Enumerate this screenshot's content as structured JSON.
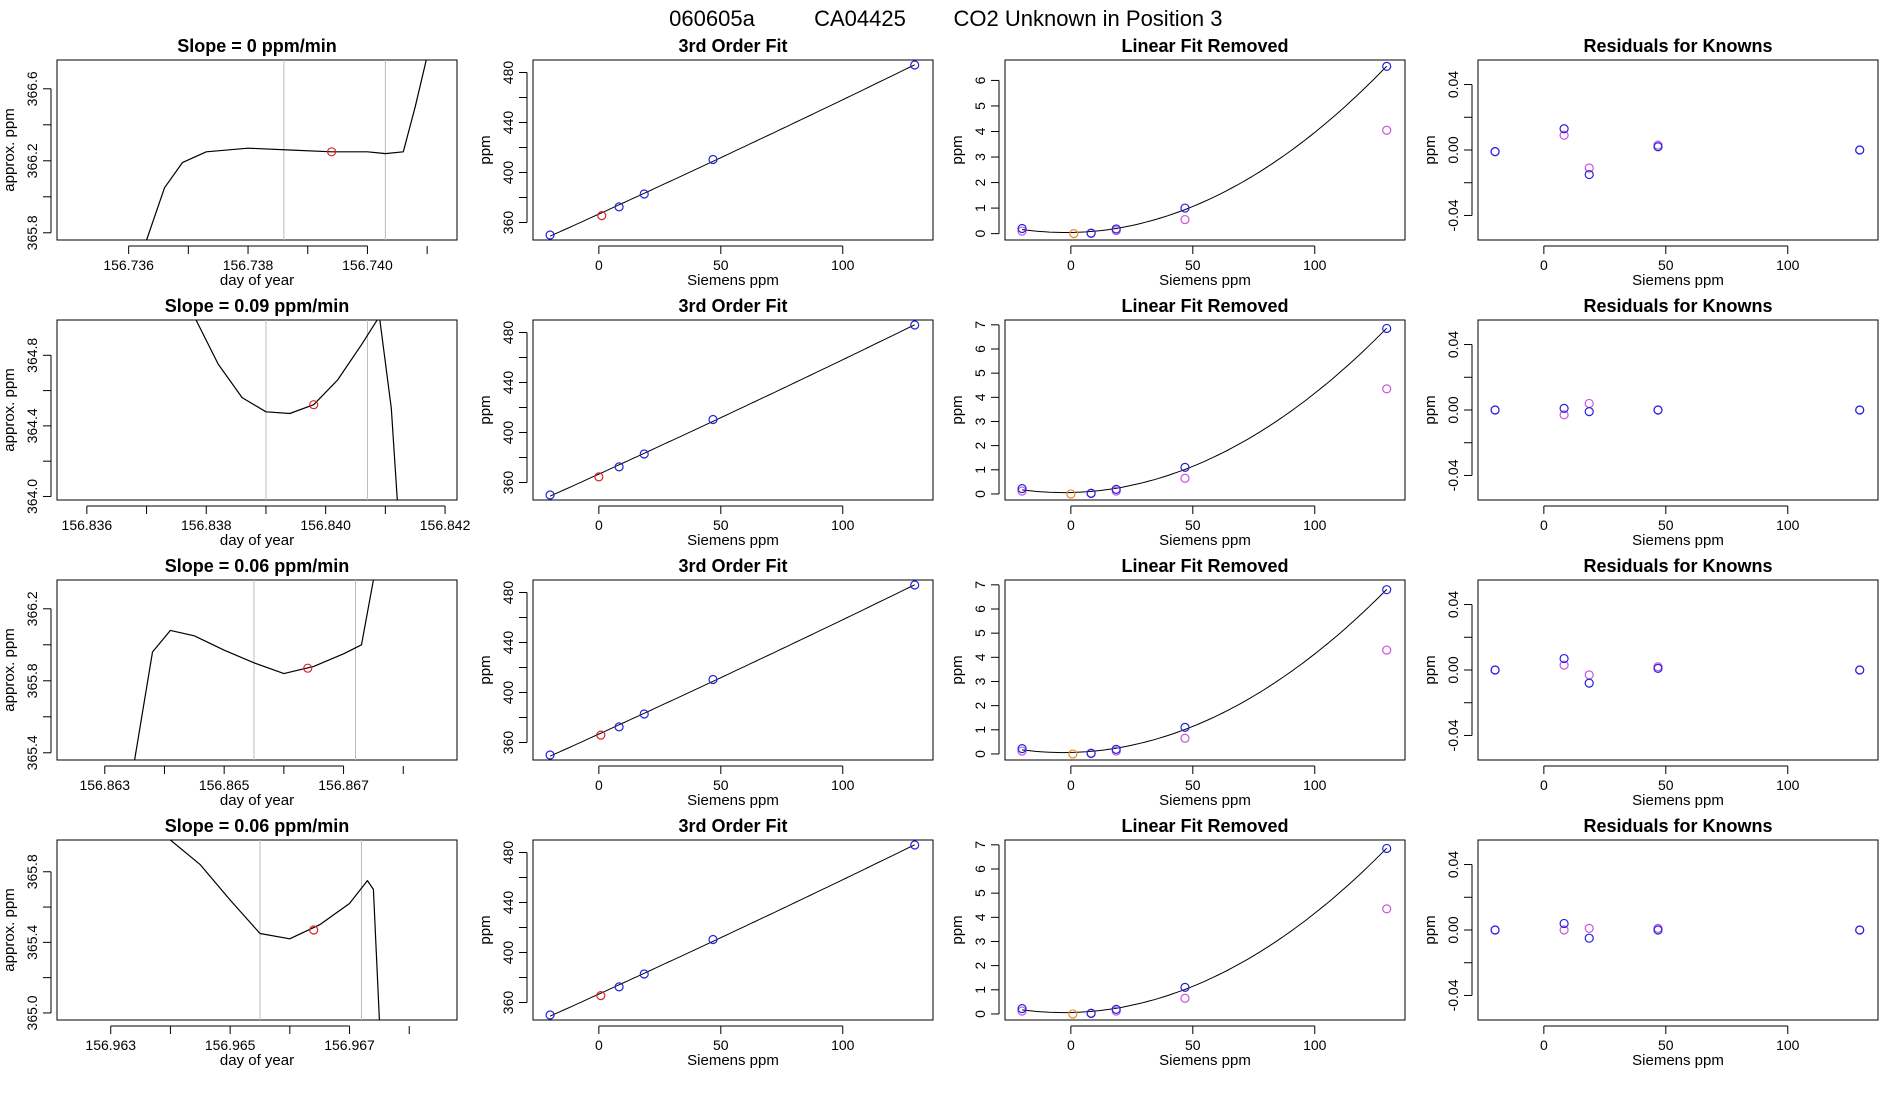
{
  "figure": {
    "title_parts": [
      "060605a",
      "CA04425",
      "CO2 Unknown in Position  3"
    ]
  },
  "colors": {
    "known": "#2222dd",
    "fit_point": "#cc55dd",
    "unknown": "#dd2222",
    "unknown_orange": "#ee8822",
    "vline": "#bbbbbb",
    "line": "#000000"
  },
  "chart_data": [
    {
      "type": "line",
      "row": 0,
      "panel": "trace",
      "title": "Slope =  0  ppm/min",
      "xlabel": "day of year",
      "ylabel": "approx. ppm",
      "xlim": [
        156.7348,
        156.7415
      ],
      "ylim": [
        365.76,
        366.76
      ],
      "xticks": [
        156.736,
        156.738,
        156.74
      ],
      "xtick_labels": [
        "156.736",
        "156.738",
        "156.740"
      ],
      "xticks_minor": [
        156.737,
        156.739,
        156.741
      ],
      "yticks": [
        365.8,
        366.2,
        366.6
      ],
      "ytick_labels": [
        "365.8",
        "366.2",
        "366.6"
      ],
      "yticks_minor": [
        366.0,
        366.4
      ],
      "x": [
        156.7363,
        156.7366,
        156.7369,
        156.7373,
        156.738,
        156.7387,
        156.7394,
        156.74,
        156.7403,
        156.7406,
        156.7408,
        156.741
      ],
      "y": [
        365.76,
        366.05,
        366.19,
        366.25,
        366.27,
        366.26,
        366.25,
        366.25,
        366.24,
        366.25,
        366.5,
        366.78
      ],
      "vlines": [
        156.7386,
        156.7403
      ],
      "marker": {
        "x": 156.7394,
        "y": 366.25
      }
    },
    {
      "type": "scatter",
      "row": 0,
      "panel": "fit",
      "title": "3rd Order Fit",
      "xlabel": "Siemens ppm",
      "ylabel": "ppm",
      "xlim": [
        -27,
        137
      ],
      "ylim": [
        346,
        490
      ],
      "xticks": [
        0,
        50,
        100
      ],
      "xtick_labels": [
        "0",
        "50",
        "100"
      ],
      "yticks": [
        360,
        400,
        440,
        480
      ],
      "ytick_labels": [
        "360",
        "400",
        "440",
        "480"
      ],
      "yticks_minor": [
        380,
        420,
        460
      ],
      "x": [
        -20,
        8.3,
        18.6,
        46.8,
        129.5
      ],
      "y": [
        350,
        372.5,
        382.8,
        410.4,
        486
      ],
      "unknown": {
        "x": 1.2,
        "y": 365.5
      }
    },
    {
      "type": "scatter",
      "row": 0,
      "panel": "linear_removed",
      "title": "Linear Fit Removed",
      "xlabel": "Siemens ppm",
      "ylabel": "ppm",
      "xlim": [
        -27,
        137
      ],
      "ylim": [
        -0.25,
        6.8
      ],
      "xticks": [
        0,
        50,
        100
      ],
      "xtick_labels": [
        "0",
        "50",
        "100"
      ],
      "yticks": [
        0,
        1,
        2,
        3,
        4,
        5,
        6
      ],
      "ytick_labels": [
        "0",
        "1",
        "2",
        "3",
        "4",
        "5",
        "6"
      ],
      "x": [
        -20,
        8.3,
        18.6,
        46.8,
        129.5
      ],
      "y": [
        0.2,
        0.02,
        0.18,
        1.0,
        6.55
      ],
      "y2": [
        0.1,
        0.01,
        0.12,
        0.55,
        4.05
      ],
      "unknown": {
        "x": 1.2,
        "y": 0.0
      }
    },
    {
      "type": "scatter",
      "row": 0,
      "panel": "residuals",
      "title": "Residuals for Knowns",
      "xlabel": "Siemens ppm",
      "ylabel": "ppm",
      "xlim": [
        -27,
        137
      ],
      "ylim": [
        -0.055,
        0.055
      ],
      "xticks": [
        0,
        50,
        100
      ],
      "xtick_labels": [
        "0",
        "50",
        "100"
      ],
      "yticks": [
        -0.04,
        0.0,
        0.04
      ],
      "ytick_labels": [
        "-0.04",
        "0.00",
        "0.04"
      ],
      "yticks_minor": [
        -0.02,
        0.02
      ],
      "x": [
        -20,
        8.3,
        18.6,
        46.8,
        129.5
      ],
      "y": [
        -0.001,
        0.013,
        -0.015,
        0.002,
        0.0
      ],
      "y2": [
        -0.001,
        0.009,
        -0.011,
        0.003,
        0.0
      ]
    },
    {
      "type": "line",
      "row": 1,
      "panel": "trace",
      "title": "Slope =  0.09  ppm/min",
      "xlabel": "day of year",
      "ylabel": "approx. ppm",
      "xlim": [
        156.8355,
        156.8422
      ],
      "ylim": [
        363.98,
        365.0
      ],
      "xticks": [
        156.836,
        156.838,
        156.84,
        156.842
      ],
      "xtick_labels": [
        "156.836",
        "156.838",
        "156.840",
        "156.842"
      ],
      "xticks_minor": [
        156.837,
        156.839,
        156.841
      ],
      "yticks": [
        364.0,
        364.4,
        364.8
      ],
      "ytick_labels": [
        "364.0",
        "364.4",
        "364.8"
      ],
      "yticks_minor": [
        364.2,
        364.6
      ],
      "x": [
        156.8378,
        156.8382,
        156.8386,
        156.839,
        156.8394,
        156.8398,
        156.8402,
        156.8406,
        156.8409,
        156.8411,
        156.8412
      ],
      "y": [
        365.02,
        364.75,
        364.56,
        364.48,
        364.47,
        364.52,
        364.66,
        364.86,
        365.02,
        364.5,
        363.98
      ],
      "vlines": [
        156.839,
        156.8407
      ],
      "marker": {
        "x": 156.8398,
        "y": 364.52
      }
    },
    {
      "type": "scatter",
      "row": 1,
      "panel": "fit",
      "title": "3rd Order Fit",
      "xlabel": "Siemens ppm",
      "ylabel": "ppm",
      "xlim": [
        -27,
        137
      ],
      "ylim": [
        346,
        490
      ],
      "xticks": [
        0,
        50,
        100
      ],
      "xtick_labels": [
        "0",
        "50",
        "100"
      ],
      "yticks": [
        360,
        400,
        440,
        480
      ],
      "ytick_labels": [
        "360",
        "400",
        "440",
        "480"
      ],
      "yticks_minor": [
        380,
        420,
        460
      ],
      "x": [
        -20,
        8.3,
        18.6,
        46.8,
        129.5
      ],
      "y": [
        350,
        372.5,
        382.8,
        410.4,
        486
      ],
      "unknown": {
        "x": 0,
        "y": 364.5
      }
    },
    {
      "type": "scatter",
      "row": 1,
      "panel": "linear_removed",
      "title": "Linear Fit Removed",
      "xlabel": "Siemens ppm",
      "ylabel": "ppm",
      "xlim": [
        -27,
        137
      ],
      "ylim": [
        -0.25,
        7.2
      ],
      "xticks": [
        0,
        50,
        100
      ],
      "xtick_labels": [
        "0",
        "50",
        "100"
      ],
      "yticks": [
        0,
        1,
        2,
        3,
        4,
        5,
        6,
        7
      ],
      "ytick_labels": [
        "0",
        "1",
        "2",
        "3",
        "4",
        "5",
        "6",
        "7"
      ],
      "x": [
        -20,
        8.3,
        18.6,
        46.8,
        129.5
      ],
      "y": [
        0.22,
        0.03,
        0.19,
        1.1,
        6.85
      ],
      "y2": [
        0.12,
        0.02,
        0.12,
        0.65,
        4.35
      ],
      "unknown": {
        "x": 0,
        "y": 0.0
      }
    },
    {
      "type": "scatter",
      "row": 1,
      "panel": "residuals",
      "title": "Residuals for Knowns",
      "xlabel": "Siemens ppm",
      "ylabel": "ppm",
      "xlim": [
        -27,
        137
      ],
      "ylim": [
        -0.055,
        0.055
      ],
      "xticks": [
        0,
        50,
        100
      ],
      "xtick_labels": [
        "0",
        "50",
        "100"
      ],
      "yticks": [
        -0.04,
        0.0,
        0.04
      ],
      "ytick_labels": [
        "-0.04",
        "0.00",
        "0.04"
      ],
      "yticks_minor": [
        -0.02,
        0.02
      ],
      "x": [
        -20,
        8.3,
        18.6,
        46.8,
        129.5
      ],
      "y": [
        0.0,
        0.001,
        -0.001,
        0.0,
        0.0
      ],
      "y2": [
        0.0,
        -0.003,
        0.004,
        0.0,
        0.0
      ]
    },
    {
      "type": "line",
      "row": 2,
      "panel": "trace",
      "title": "Slope =  0.06  ppm/min",
      "xlabel": "day of year",
      "ylabel": "approx. ppm",
      "xlim": [
        156.8622,
        156.8689
      ],
      "ylim": [
        365.36,
        366.36
      ],
      "xticks": [
        156.863,
        156.865,
        156.867
      ],
      "xtick_labels": [
        "156.863",
        "156.865",
        "156.867"
      ],
      "xticks_minor": [
        156.864,
        156.866,
        156.868
      ],
      "yticks": [
        365.4,
        365.8,
        366.2
      ],
      "ytick_labels": [
        "365.4",
        "365.8",
        "366.2"
      ],
      "yticks_minor": [
        365.6,
        366.0
      ],
      "x": [
        156.8635,
        156.8638,
        156.8641,
        156.8645,
        156.865,
        156.8655,
        156.866,
        156.8665,
        156.867,
        156.8673,
        156.8675
      ],
      "y": [
        365.36,
        365.96,
        366.08,
        366.05,
        365.97,
        365.9,
        365.84,
        365.88,
        365.95,
        366.0,
        366.36
      ],
      "vlines": [
        156.8655,
        156.8672
      ],
      "marker": {
        "x": 156.8664,
        "y": 365.87
      }
    },
    {
      "type": "scatter",
      "row": 2,
      "panel": "fit",
      "title": "3rd Order Fit",
      "xlabel": "Siemens ppm",
      "ylabel": "ppm",
      "xlim": [
        -27,
        137
      ],
      "ylim": [
        346,
        490
      ],
      "xticks": [
        0,
        50,
        100
      ],
      "xtick_labels": [
        "0",
        "50",
        "100"
      ],
      "yticks": [
        360,
        400,
        440,
        480
      ],
      "ytick_labels": [
        "360",
        "400",
        "440",
        "480"
      ],
      "yticks_minor": [
        380,
        420,
        460
      ],
      "x": [
        -20,
        8.3,
        18.6,
        46.8,
        129.5
      ],
      "y": [
        350,
        372.5,
        382.8,
        410.4,
        486
      ],
      "unknown": {
        "x": 0.8,
        "y": 365.9
      }
    },
    {
      "type": "scatter",
      "row": 2,
      "panel": "linear_removed",
      "title": "Linear Fit Removed",
      "xlabel": "Siemens ppm",
      "ylabel": "ppm",
      "xlim": [
        -27,
        137
      ],
      "ylim": [
        -0.25,
        7.2
      ],
      "xticks": [
        0,
        50,
        100
      ],
      "xtick_labels": [
        "0",
        "50",
        "100"
      ],
      "yticks": [
        0,
        1,
        2,
        3,
        4,
        5,
        6,
        7
      ],
      "ytick_labels": [
        "0",
        "1",
        "2",
        "3",
        "4",
        "5",
        "6",
        "7"
      ],
      "x": [
        -20,
        8.3,
        18.6,
        46.8,
        129.5
      ],
      "y": [
        0.22,
        0.03,
        0.19,
        1.1,
        6.8
      ],
      "y2": [
        0.12,
        0.02,
        0.12,
        0.65,
        4.3
      ],
      "unknown": {
        "x": 0.8,
        "y": 0.0
      }
    },
    {
      "type": "scatter",
      "row": 2,
      "panel": "residuals",
      "title": "Residuals for Knowns",
      "xlabel": "Siemens ppm",
      "ylabel": "ppm",
      "xlim": [
        -27,
        137
      ],
      "ylim": [
        -0.055,
        0.055
      ],
      "xticks": [
        0,
        50,
        100
      ],
      "xtick_labels": [
        "0",
        "50",
        "100"
      ],
      "yticks": [
        -0.04,
        0.0,
        0.04
      ],
      "ytick_labels": [
        "-0.04",
        "0.00",
        "0.04"
      ],
      "yticks_minor": [
        -0.02,
        0.02
      ],
      "x": [
        -20,
        8.3,
        18.6,
        46.8,
        129.5
      ],
      "y": [
        0.0,
        0.007,
        -0.008,
        0.001,
        0.0
      ],
      "y2": [
        0.0,
        0.003,
        -0.003,
        0.002,
        0.0
      ]
    },
    {
      "type": "line",
      "row": 3,
      "panel": "trace",
      "title": "Slope =  0.06  ppm/min",
      "xlabel": "day of year",
      "ylabel": "approx. ppm",
      "xlim": [
        156.9621,
        156.9688
      ],
      "ylim": [
        364.96,
        365.98
      ],
      "xticks": [
        156.963,
        156.965,
        156.967
      ],
      "xtick_labels": [
        "156.963",
        "156.965",
        "156.967"
      ],
      "xticks_minor": [
        156.964,
        156.966,
        156.968
      ],
      "yticks": [
        365.0,
        365.4,
        365.8
      ],
      "ytick_labels": [
        "365.0",
        "365.4",
        "365.8"
      ],
      "yticks_minor": [
        365.2,
        365.6
      ],
      "x": [
        156.964,
        156.9645,
        156.965,
        156.9655,
        156.966,
        156.9665,
        156.967,
        156.9673,
        156.9674,
        156.9675
      ],
      "y": [
        365.98,
        365.84,
        365.64,
        365.45,
        365.42,
        365.5,
        365.62,
        365.75,
        365.7,
        364.96
      ],
      "vlines": [
        156.9655,
        156.9672
      ],
      "marker": {
        "x": 156.9664,
        "y": 365.47
      }
    },
    {
      "type": "scatter",
      "row": 3,
      "panel": "fit",
      "title": "3rd Order Fit",
      "xlabel": "Siemens ppm",
      "ylabel": "ppm",
      "xlim": [
        -27,
        137
      ],
      "ylim": [
        346,
        490
      ],
      "xticks": [
        0,
        50,
        100
      ],
      "xtick_labels": [
        "0",
        "50",
        "100"
      ],
      "yticks": [
        360,
        400,
        440,
        480
      ],
      "ytick_labels": [
        "360",
        "400",
        "440",
        "480"
      ],
      "yticks_minor": [
        380,
        420,
        460
      ],
      "x": [
        -20,
        8.3,
        18.6,
        46.8,
        129.5
      ],
      "y": [
        350,
        372.5,
        382.8,
        410.4,
        486
      ],
      "unknown": {
        "x": 0.8,
        "y": 365.5
      }
    },
    {
      "type": "scatter",
      "row": 3,
      "panel": "linear_removed",
      "title": "Linear Fit Removed",
      "xlabel": "Siemens ppm",
      "ylabel": "ppm",
      "xlim": [
        -27,
        137
      ],
      "ylim": [
        -0.25,
        7.2
      ],
      "xticks": [
        0,
        50,
        100
      ],
      "xtick_labels": [
        "0",
        "50",
        "100"
      ],
      "yticks": [
        0,
        1,
        2,
        3,
        4,
        5,
        6,
        7
      ],
      "ytick_labels": [
        "0",
        "1",
        "2",
        "3",
        "4",
        "5",
        "6",
        "7"
      ],
      "x": [
        -20,
        8.3,
        18.6,
        46.8,
        129.5
      ],
      "y": [
        0.22,
        0.03,
        0.19,
        1.1,
        6.85
      ],
      "y2": [
        0.12,
        0.02,
        0.12,
        0.65,
        4.35
      ],
      "unknown": {
        "x": 0.8,
        "y": 0.0
      }
    },
    {
      "type": "scatter",
      "row": 3,
      "panel": "residuals",
      "title": "Residuals for Knowns",
      "xlabel": "Siemens ppm",
      "ylabel": "ppm",
      "xlim": [
        -27,
        137
      ],
      "ylim": [
        -0.055,
        0.055
      ],
      "xticks": [
        0,
        50,
        100
      ],
      "xtick_labels": [
        "0",
        "50",
        "100"
      ],
      "yticks": [
        -0.04,
        0.0,
        0.04
      ],
      "ytick_labels": [
        "-0.04",
        "0.00",
        "0.04"
      ],
      "yticks_minor": [
        -0.02,
        0.02
      ],
      "x": [
        -20,
        8.3,
        18.6,
        46.8,
        129.5
      ],
      "y": [
        0.0,
        0.004,
        -0.005,
        0.0,
        0.0
      ],
      "y2": [
        0.0,
        0.0,
        0.001,
        0.001,
        0.0
      ]
    }
  ]
}
